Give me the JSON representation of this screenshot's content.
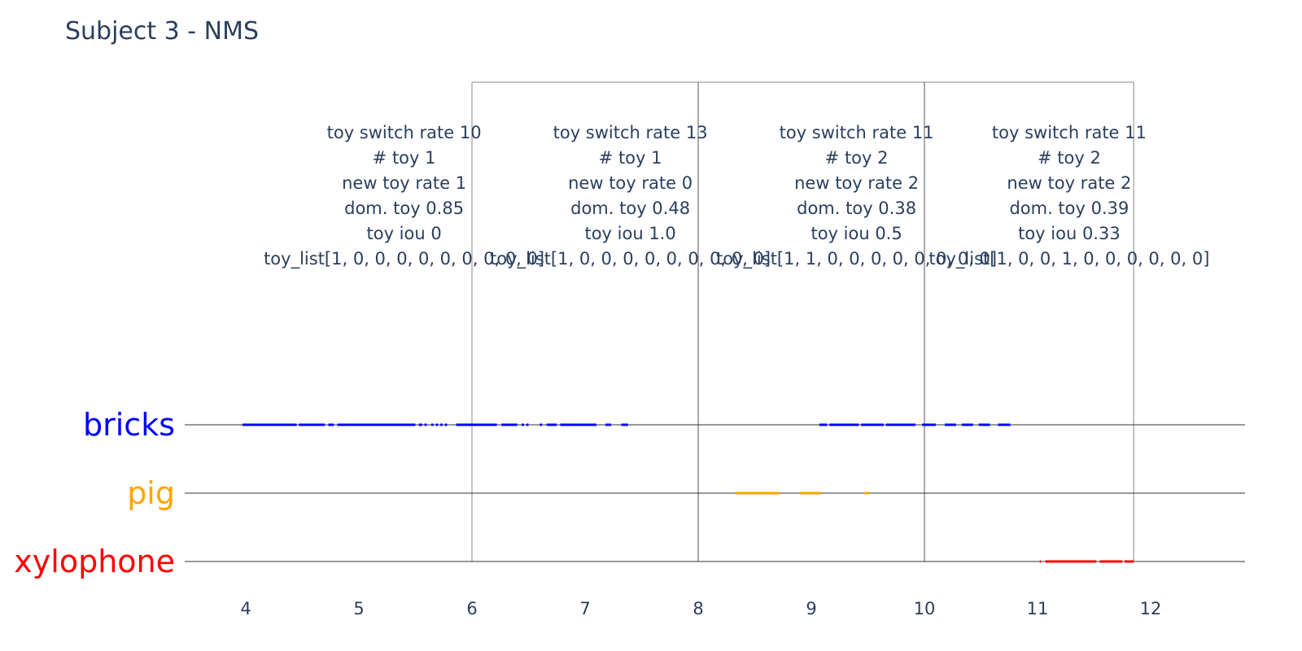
{
  "chart_data": {
    "type": "timeline",
    "title": "Subject 3 - NMS",
    "xlim": [
      3.5,
      12.8
    ],
    "xticks": [
      4,
      5,
      6,
      7,
      8,
      9,
      10,
      11,
      12
    ],
    "categories": [
      {
        "name": "bricks",
        "color": "#0000ff"
      },
      {
        "name": "pig",
        "color": "#ffa500"
      },
      {
        "name": "xylophone",
        "color": "#ff0000"
      }
    ],
    "boundaries": [
      6,
      8,
      10,
      11.85
    ],
    "segments": [
      {
        "toy": "bricks",
        "start": 3.97,
        "end": 4.45
      },
      {
        "toy": "bricks",
        "start": 4.47,
        "end": 4.7
      },
      {
        "toy": "bricks",
        "start": 4.73,
        "end": 4.78
      },
      {
        "toy": "bricks",
        "start": 4.81,
        "end": 5.5
      },
      {
        "toy": "bricks",
        "start": 5.53,
        "end": 5.56
      },
      {
        "toy": "bricks",
        "start": 5.58,
        "end": 5.6
      },
      {
        "toy": "bricks",
        "start": 5.64,
        "end": 5.66
      },
      {
        "toy": "bricks",
        "start": 5.68,
        "end": 5.7
      },
      {
        "toy": "bricks",
        "start": 5.72,
        "end": 5.74
      },
      {
        "toy": "bricks",
        "start": 5.76,
        "end": 5.78
      },
      {
        "toy": "bricks",
        "start": 5.86,
        "end": 6.22
      },
      {
        "toy": "bricks",
        "start": 6.26,
        "end": 6.4
      },
      {
        "toy": "bricks",
        "start": 6.44,
        "end": 6.46
      },
      {
        "toy": "bricks",
        "start": 6.48,
        "end": 6.5
      },
      {
        "toy": "bricks",
        "start": 6.6,
        "end": 6.62
      },
      {
        "toy": "bricks",
        "start": 6.66,
        "end": 6.75
      },
      {
        "toy": "bricks",
        "start": 6.78,
        "end": 7.1
      },
      {
        "toy": "bricks",
        "start": 7.18,
        "end": 7.23
      },
      {
        "toy": "bricks",
        "start": 7.32,
        "end": 7.38
      },
      {
        "toy": "bricks",
        "start": 9.07,
        "end": 9.14
      },
      {
        "toy": "bricks",
        "start": 9.16,
        "end": 9.42
      },
      {
        "toy": "bricks",
        "start": 9.44,
        "end": 9.64
      },
      {
        "toy": "bricks",
        "start": 9.66,
        "end": 9.92
      },
      {
        "toy": "bricks",
        "start": 9.98,
        "end": 10.1
      },
      {
        "toy": "bricks",
        "start": 10.18,
        "end": 10.28
      },
      {
        "toy": "bricks",
        "start": 10.33,
        "end": 10.43
      },
      {
        "toy": "bricks",
        "start": 10.48,
        "end": 10.58
      },
      {
        "toy": "bricks",
        "start": 10.65,
        "end": 10.76
      },
      {
        "toy": "pig",
        "start": 8.33,
        "end": 8.72
      },
      {
        "toy": "pig",
        "start": 8.9,
        "end": 9.09
      },
      {
        "toy": "pig",
        "start": 9.47,
        "end": 9.51
      },
      {
        "toy": "xylophone",
        "start": 11.02,
        "end": 11.03
      },
      {
        "toy": "xylophone",
        "start": 11.07,
        "end": 11.52
      },
      {
        "toy": "xylophone",
        "start": 11.55,
        "end": 11.75
      },
      {
        "toy": "xylophone",
        "start": 11.77,
        "end": 11.85
      }
    ],
    "windows": [
      {
        "center": 5.4,
        "lines": [
          "toy switch rate 10",
          "# toy 1",
          "new toy rate 1",
          "dom. toy 0.85",
          "toy iou 0",
          "toy_list[1, 0, 0, 0, 0, 0, 0, 0, 0, 0]"
        ]
      },
      {
        "center": 7.4,
        "lines": [
          "toy switch rate 13",
          "# toy 1",
          "new toy rate 0",
          "dom. toy 0.48",
          "toy iou 1.0",
          "toy_list[1, 0, 0, 0, 0, 0, 0, 0, 0, 0]"
        ]
      },
      {
        "center": 9.4,
        "lines": [
          "toy switch rate 11",
          "# toy 2",
          "new toy rate 2",
          "dom. toy 0.38",
          "toy iou 0.5",
          "toy_list[1, 1, 0, 0, 0, 0, 0, 0, 0, 0]"
        ]
      },
      {
        "center": 11.28,
        "lines": [
          "toy switch rate 11",
          "# toy 2",
          "new toy rate 2",
          "dom. toy 0.39",
          "toy iou 0.33",
          "toy_list[1, 0, 0, 1, 0, 0, 0, 0, 0, 0]"
        ]
      }
    ]
  }
}
